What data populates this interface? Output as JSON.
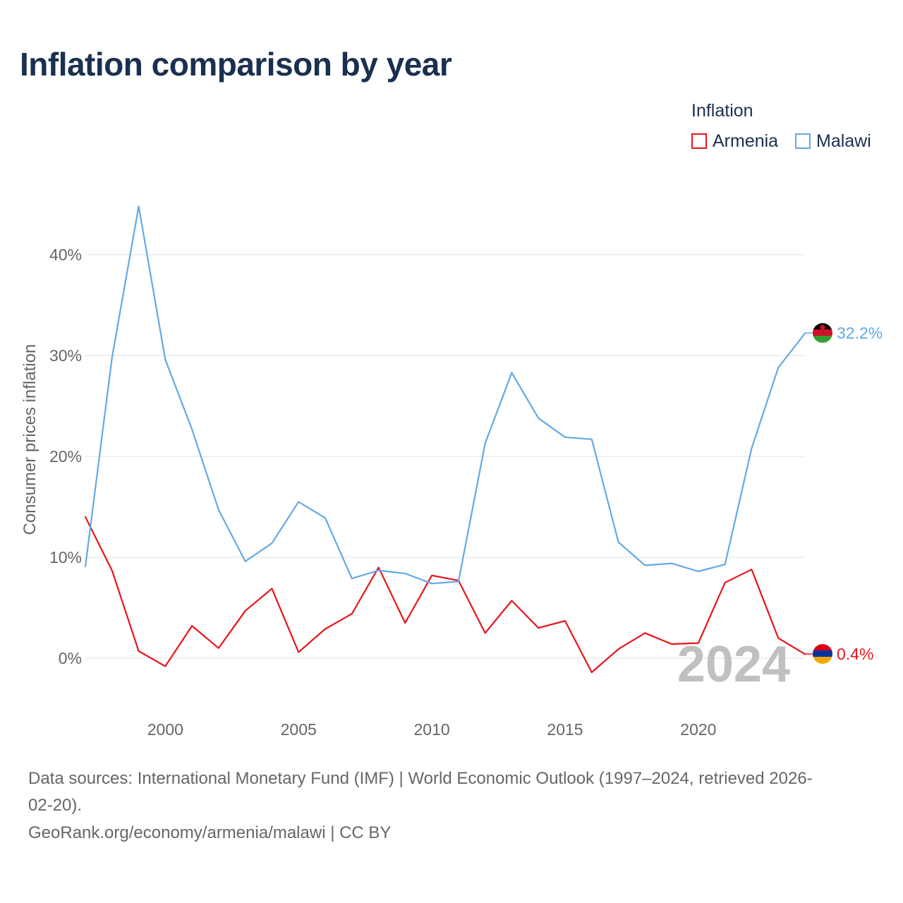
{
  "chart_data": {
    "type": "line",
    "title": "Inflation comparison by year",
    "ylabel": "Consumer prices inflation",
    "xlabel": "",
    "legend_title": "Inflation",
    "legend_position": "top-right",
    "current_year_label": "2024",
    "x": [
      1997,
      1998,
      1999,
      2000,
      2001,
      2002,
      2003,
      2004,
      2005,
      2006,
      2007,
      2008,
      2009,
      2010,
      2011,
      2012,
      2013,
      2014,
      2015,
      2016,
      2017,
      2018,
      2019,
      2020,
      2021,
      2022,
      2023,
      2024
    ],
    "x_ticks": [
      2000,
      2005,
      2010,
      2015,
      2020
    ],
    "y_ticks": [
      0,
      10,
      20,
      30,
      40
    ],
    "y_tick_labels": [
      "0%",
      "10%",
      "20%",
      "30%",
      "40%"
    ],
    "xlim": [
      1997,
      2024
    ],
    "ylim": [
      -5,
      48
    ],
    "series": [
      {
        "name": "Armenia",
        "color": "#e8141c",
        "end_label": "0.4%",
        "flag": "armenia-flag",
        "values": [
          14.0,
          8.7,
          0.7,
          -0.8,
          3.2,
          1.0,
          4.7,
          6.9,
          0.6,
          2.9,
          4.4,
          9.0,
          3.5,
          8.2,
          7.7,
          2.5,
          5.7,
          3.0,
          3.7,
          -1.4,
          0.9,
          2.5,
          1.4,
          1.5,
          7.5,
          8.8,
          2.0,
          0.4
        ]
      },
      {
        "name": "Malawi",
        "color": "#65a9e3",
        "end_label": "32.2%",
        "flag": "malawi-flag",
        "values": [
          9.1,
          29.8,
          44.8,
          29.6,
          22.7,
          14.7,
          9.6,
          11.4,
          15.5,
          13.9,
          7.9,
          8.7,
          8.4,
          7.4,
          7.6,
          21.3,
          28.3,
          23.8,
          21.9,
          21.7,
          11.5,
          9.2,
          9.4,
          8.6,
          9.3,
          20.8,
          28.8,
          32.2
        ]
      }
    ]
  },
  "footer": {
    "source_line_1": "Data sources: International Monetary Fund (IMF) | World Economic Outlook (1997–2024, retrieved 2026-",
    "source_line_2": "02-20).",
    "credit": "GeoRank.org/economy/armenia/malawi | CC BY"
  }
}
